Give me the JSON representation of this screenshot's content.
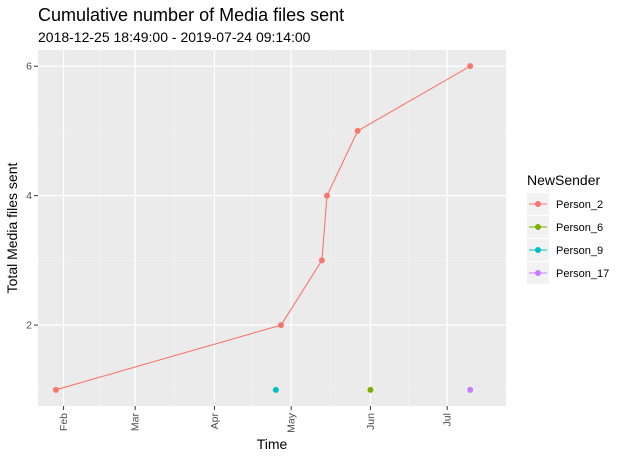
{
  "chart_data": {
    "type": "line",
    "title": "Cumulative number of Media files sent",
    "subtitle": "2018-12-25 18:49:00  -  2019-07-24 09:14:00",
    "xlabel": "Time",
    "ylabel": "Total Media files sent",
    "x_ticks": [
      {
        "date": "2019-02-01",
        "label": "Feb"
      },
      {
        "date": "2019-03-01",
        "label": "Mar"
      },
      {
        "date": "2019-04-01",
        "label": "Apr"
      },
      {
        "date": "2019-05-01",
        "label": "May"
      },
      {
        "date": "2019-06-01",
        "label": "Jun"
      },
      {
        "date": "2019-07-01",
        "label": "Jul"
      }
    ],
    "y_ticks": [
      2,
      4,
      6
    ],
    "xlim": [
      "2019-01-22",
      "2019-07-24"
    ],
    "ylim": [
      0.75,
      6.25
    ],
    "grid": true,
    "legend": {
      "title": "NewSender",
      "position": "right"
    },
    "series": [
      {
        "name": "Person_2",
        "color": "#F8766D",
        "points": [
          {
            "x": "2019-01-29",
            "y": 1
          },
          {
            "x": "2019-04-27",
            "y": 2
          },
          {
            "x": "2019-05-13",
            "y": 3
          },
          {
            "x": "2019-05-15",
            "y": 4
          },
          {
            "x": "2019-05-27",
            "y": 5
          },
          {
            "x": "2019-07-10",
            "y": 6
          }
        ]
      },
      {
        "name": "Person_6",
        "color": "#7CAE00",
        "points": [
          {
            "x": "2019-06-01",
            "y": 1
          }
        ]
      },
      {
        "name": "Person_9",
        "color": "#00BFC4",
        "points": [
          {
            "x": "2019-04-25",
            "y": 1
          }
        ]
      },
      {
        "name": "Person_17",
        "color": "#C77CFF",
        "points": [
          {
            "x": "2019-07-10",
            "y": 1
          }
        ]
      }
    ]
  }
}
